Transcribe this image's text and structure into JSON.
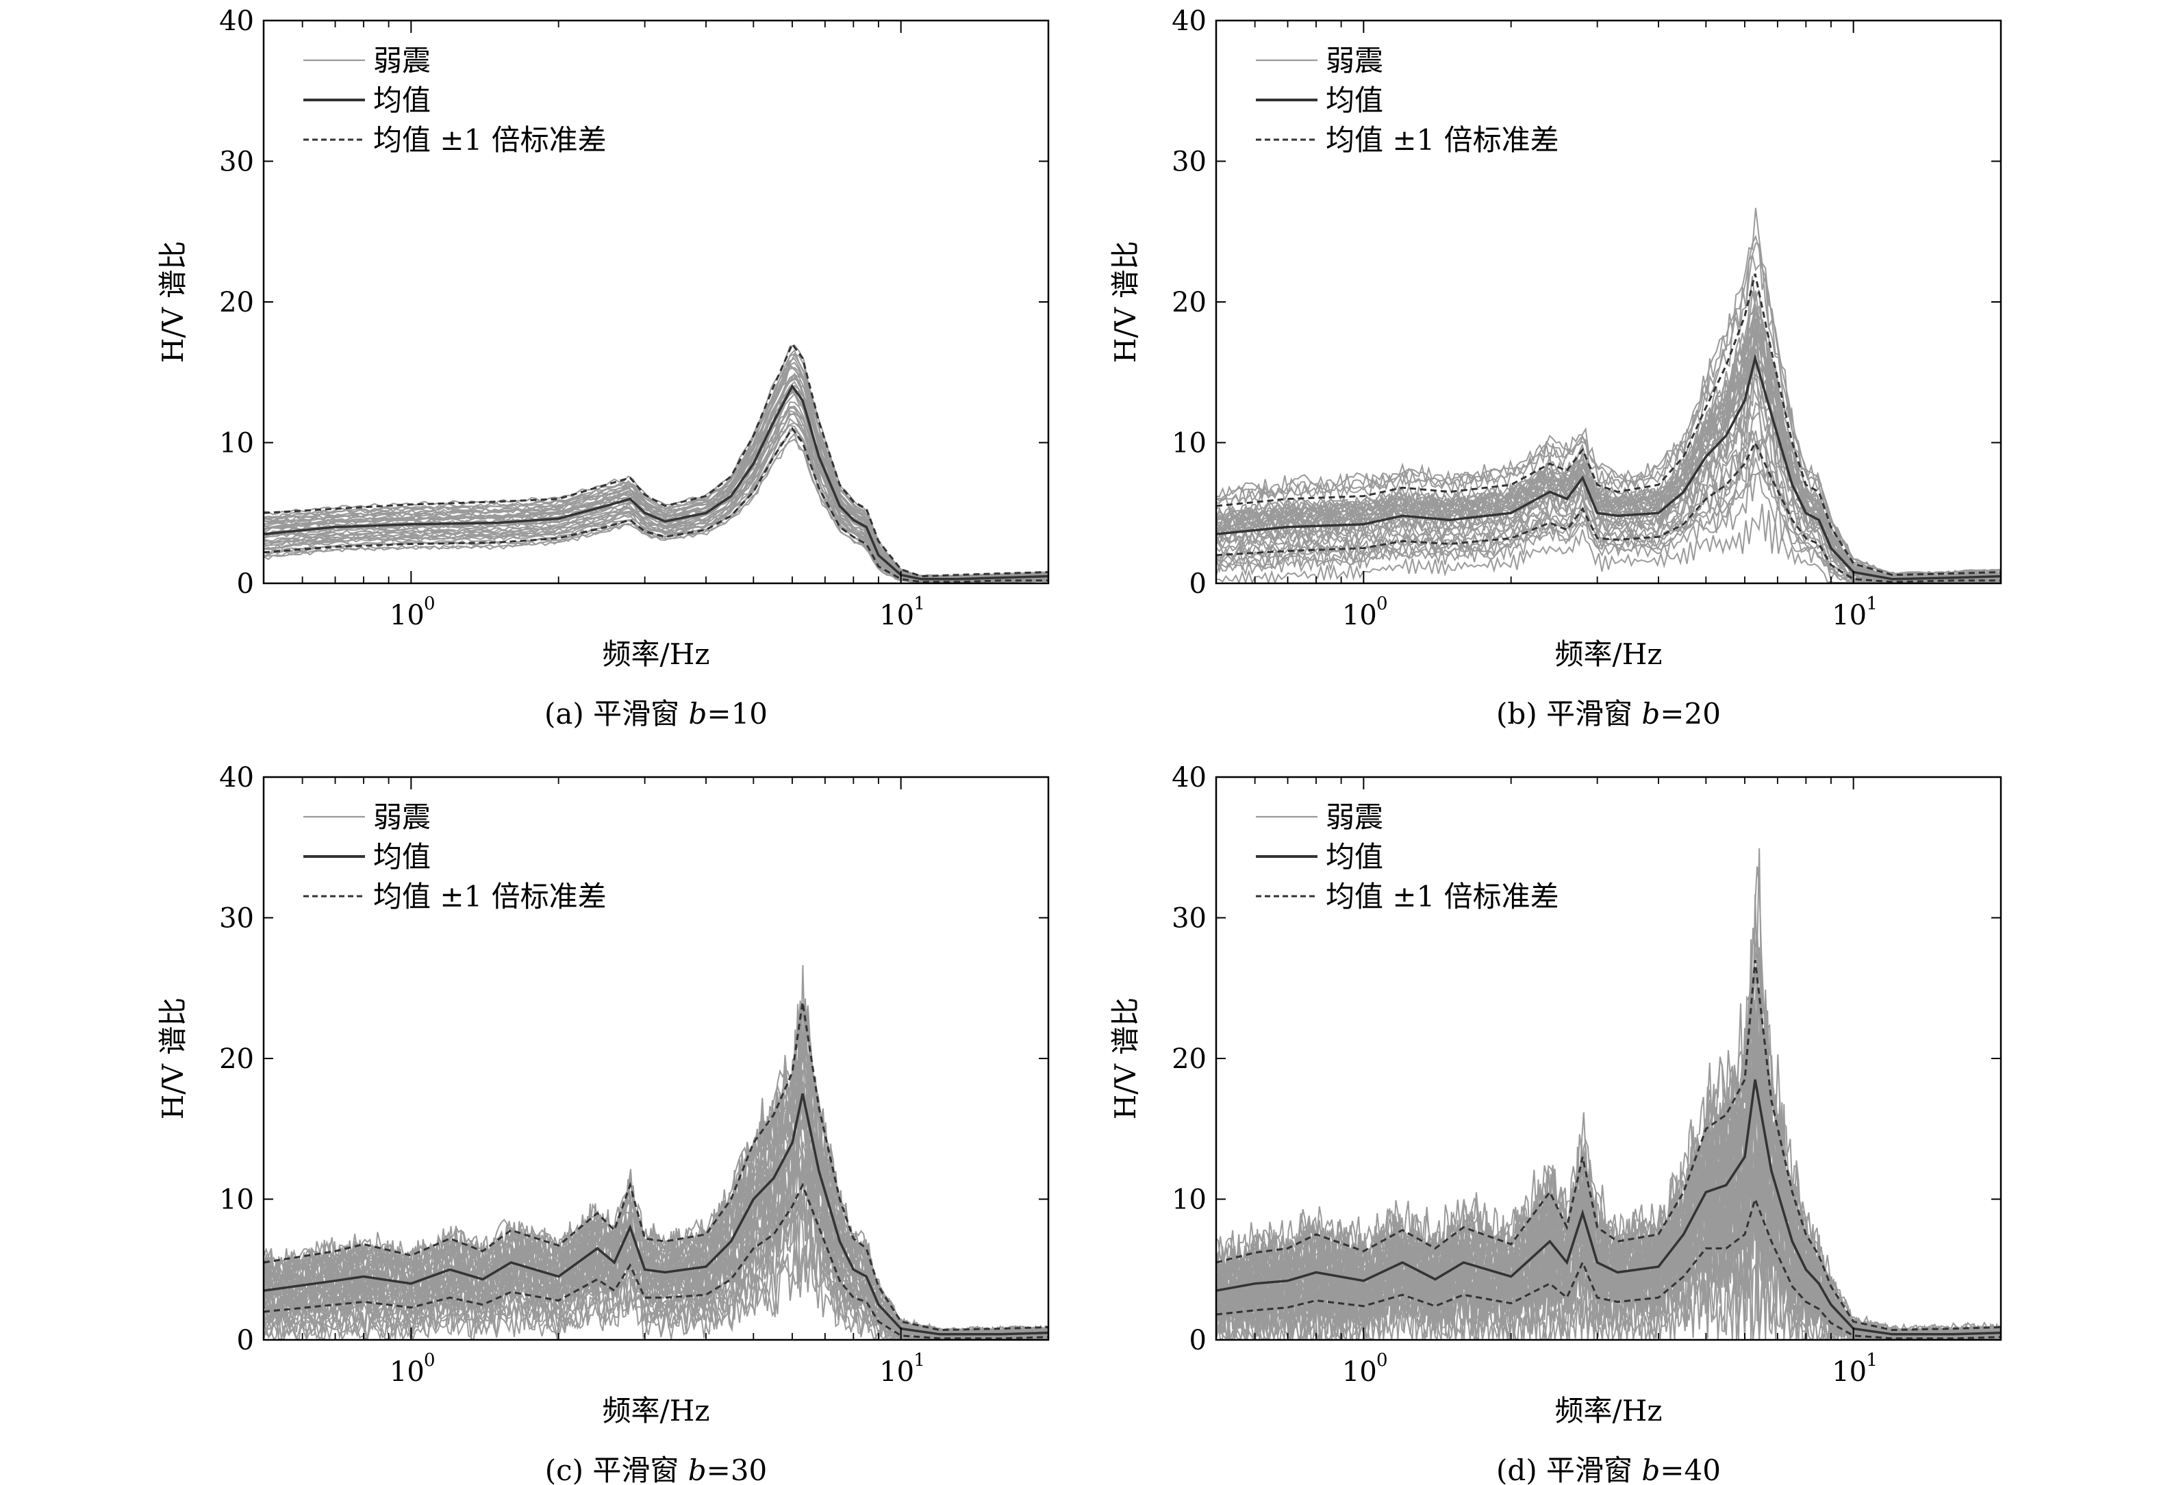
{
  "figure": {
    "panels": [
      {
        "caption_pre": "(a) 平滑窗 ",
        "caption_var": "b",
        "caption_post": "=10"
      },
      {
        "caption_pre": "(b) 平滑窗 ",
        "caption_var": "b",
        "caption_post": "=20"
      },
      {
        "caption_pre": "(c) 平滑窗 ",
        "caption_var": "b",
        "caption_post": "=30"
      },
      {
        "caption_pre": "(d) 平滑窗 ",
        "caption_var": "b",
        "caption_post": "=40"
      }
    ]
  },
  "colors": {
    "individual": "#9a9a9a",
    "mean": "#333333",
    "std": "#333333",
    "axis": "#000000"
  },
  "chart_data": [
    {
      "type": "line",
      "xlabel": "频率/Hz",
      "ylabel": "H/V 谱比",
      "xscale": "log",
      "xlim": [
        0.5,
        20
      ],
      "ylim": [
        0,
        40
      ],
      "yticks": [
        0,
        10,
        20,
        30,
        40
      ],
      "xticks": [
        {
          "value": 1,
          "base": "10",
          "exp": "0"
        },
        {
          "value": 10,
          "base": "10",
          "exp": "1"
        }
      ],
      "legend": {
        "placement": "top-left",
        "entries": [
          {
            "label": "弱震",
            "style": "individual"
          },
          {
            "label": "均值",
            "style": "mean"
          },
          {
            "label": "均值 ±1 倍标准差",
            "style": "std"
          }
        ]
      },
      "x": [
        0.5,
        0.7,
        1.0,
        1.5,
        2.0,
        2.5,
        2.8,
        3.0,
        3.3,
        4.0,
        4.5,
        5.0,
        5.5,
        6.0,
        6.3,
        6.8,
        7.5,
        8.0,
        8.5,
        9.0,
        10.0,
        11.0,
        13.0,
        16.0,
        20.0
      ],
      "series": [
        {
          "name": "均值",
          "values": [
            3.5,
            4.0,
            4.2,
            4.3,
            4.6,
            5.5,
            6.0,
            5.0,
            4.4,
            5.0,
            6.2,
            8.5,
            11.5,
            14.0,
            13.0,
            9.0,
            5.5,
            4.5,
            4.0,
            2.0,
            0.6,
            0.3,
            0.3,
            0.4,
            0.5
          ]
        },
        {
          "name": "均值+1倍标准差",
          "values": [
            5.0,
            5.3,
            5.6,
            5.8,
            6.0,
            7.0,
            7.5,
            6.3,
            5.5,
            6.2,
            7.6,
            10.5,
            14.0,
            17.0,
            16.0,
            11.5,
            7.0,
            5.8,
            5.3,
            3.0,
            1.0,
            0.5,
            0.6,
            0.7,
            0.8
          ]
        },
        {
          "name": "均值-1倍标准差",
          "values": [
            2.2,
            2.6,
            2.8,
            2.9,
            3.2,
            4.0,
            4.5,
            3.7,
            3.3,
            3.8,
            4.8,
            6.5,
            9.0,
            11.0,
            10.0,
            6.8,
            4.0,
            3.3,
            2.8,
            1.2,
            0.3,
            0.1,
            0.1,
            0.2,
            0.2
          ]
        }
      ]
    },
    {
      "type": "line",
      "xlabel": "频率/Hz",
      "ylabel": "H/V 谱比",
      "xscale": "log",
      "xlim": [
        0.5,
        20
      ],
      "ylim": [
        0,
        40
      ],
      "yticks": [
        0,
        10,
        20,
        30,
        40
      ],
      "xticks": [
        {
          "value": 1,
          "base": "10",
          "exp": "0"
        },
        {
          "value": 10,
          "base": "10",
          "exp": "1"
        }
      ],
      "legend": {
        "placement": "top-left",
        "entries": [
          {
            "label": "弱震",
            "style": "individual"
          },
          {
            "label": "均值",
            "style": "mean"
          },
          {
            "label": "均值 ±1 倍标准差",
            "style": "std"
          }
        ]
      },
      "x": [
        0.5,
        0.7,
        1.0,
        1.2,
        1.5,
        2.0,
        2.4,
        2.6,
        2.8,
        3.0,
        3.3,
        4.0,
        4.5,
        5.0,
        5.5,
        6.0,
        6.3,
        6.8,
        7.5,
        8.0,
        8.5,
        9.0,
        10.0,
        12.0,
        16.0,
        20.0
      ],
      "series": [
        {
          "name": "均值",
          "values": [
            3.5,
            4.0,
            4.2,
            4.8,
            4.5,
            5.0,
            6.5,
            6.0,
            7.5,
            5.0,
            4.8,
            5.0,
            6.5,
            9.0,
            10.5,
            13.0,
            16.0,
            12.0,
            7.0,
            5.0,
            4.5,
            2.5,
            0.8,
            0.3,
            0.4,
            0.5
          ]
        },
        {
          "name": "均值+1倍标准差",
          "values": [
            5.5,
            6.0,
            6.2,
            6.8,
            6.5,
            7.0,
            8.5,
            8.0,
            9.5,
            7.0,
            6.5,
            7.0,
            9.0,
            12.5,
            15.5,
            19.0,
            22.0,
            16.5,
            10.0,
            7.0,
            6.5,
            4.0,
            1.4,
            0.6,
            0.7,
            0.8
          ]
        },
        {
          "name": "均值-1倍标准差",
          "values": [
            2.0,
            2.3,
            2.5,
            3.0,
            2.8,
            3.2,
            4.3,
            3.8,
            5.3,
            3.2,
            3.1,
            3.3,
            4.2,
            6.0,
            7.0,
            8.5,
            10.0,
            7.5,
            4.5,
            3.2,
            2.8,
            1.3,
            0.3,
            0.1,
            0.2,
            0.2
          ]
        }
      ]
    },
    {
      "type": "line",
      "xlabel": "频率/Hz",
      "ylabel": "H/V 谱比",
      "xscale": "log",
      "xlim": [
        0.5,
        20
      ],
      "ylim": [
        0,
        40
      ],
      "yticks": [
        0,
        10,
        20,
        30,
        40
      ],
      "xticks": [
        {
          "value": 1,
          "base": "10",
          "exp": "0"
        },
        {
          "value": 10,
          "base": "10",
          "exp": "1"
        }
      ],
      "legend": {
        "placement": "top-left",
        "entries": [
          {
            "label": "弱震",
            "style": "individual"
          },
          {
            "label": "均值",
            "style": "mean"
          },
          {
            "label": "均值 ±1 倍标准差",
            "style": "std"
          }
        ]
      },
      "x": [
        0.5,
        0.7,
        0.8,
        1.0,
        1.2,
        1.4,
        1.6,
        2.0,
        2.4,
        2.6,
        2.8,
        3.0,
        3.3,
        4.0,
        4.5,
        5.0,
        5.5,
        6.0,
        6.3,
        6.8,
        7.5,
        8.0,
        8.5,
        9.0,
        10.0,
        12.0,
        16.0,
        20.0
      ],
      "series": [
        {
          "name": "均值",
          "values": [
            3.5,
            4.2,
            4.5,
            4.0,
            5.0,
            4.3,
            5.5,
            4.5,
            6.5,
            5.5,
            8.0,
            5.0,
            4.8,
            5.2,
            7.0,
            10.0,
            11.5,
            14.0,
            17.5,
            12.0,
            7.0,
            5.0,
            4.5,
            2.5,
            0.8,
            0.4,
            0.4,
            0.5
          ]
        },
        {
          "name": "均值+1倍标准差",
          "values": [
            5.5,
            6.3,
            6.8,
            6.0,
            7.2,
            6.3,
            7.8,
            6.7,
            9.0,
            7.8,
            11.0,
            7.2,
            7.0,
            7.5,
            10.0,
            14.0,
            16.0,
            19.0,
            24.0,
            16.5,
            10.0,
            7.2,
            6.5,
            3.8,
            1.3,
            0.7,
            0.8,
            0.9
          ]
        },
        {
          "name": "均值-1倍标准差",
          "values": [
            2.0,
            2.5,
            2.7,
            2.3,
            3.0,
            2.5,
            3.4,
            2.8,
            4.3,
            3.5,
            5.3,
            3.0,
            3.0,
            3.2,
            4.3,
            6.5,
            7.5,
            9.5,
            11.0,
            8.0,
            4.2,
            3.0,
            2.7,
            1.3,
            0.3,
            0.1,
            0.1,
            0.2
          ]
        }
      ]
    },
    {
      "type": "line",
      "xlabel": "频率/Hz",
      "ylabel": "H/V 谱比",
      "xscale": "log",
      "xlim": [
        0.5,
        20
      ],
      "ylim": [
        0,
        40
      ],
      "yticks": [
        0,
        10,
        20,
        30,
        40
      ],
      "xticks": [
        {
          "value": 1,
          "base": "10",
          "exp": "0"
        },
        {
          "value": 10,
          "base": "10",
          "exp": "1"
        }
      ],
      "legend": {
        "placement": "top-left",
        "entries": [
          {
            "label": "弱震",
            "style": "individual"
          },
          {
            "label": "均值",
            "style": "mean"
          },
          {
            "label": "均值 ±1 倍标准差",
            "style": "std"
          }
        ]
      },
      "x": [
        0.5,
        0.6,
        0.7,
        0.8,
        1.0,
        1.2,
        1.4,
        1.6,
        2.0,
        2.4,
        2.6,
        2.8,
        3.0,
        3.3,
        4.0,
        4.5,
        5.0,
        5.5,
        6.0,
        6.3,
        6.8,
        7.5,
        8.0,
        8.5,
        9.0,
        10.0,
        12.0,
        16.0,
        20.0
      ],
      "series": [
        {
          "name": "均值",
          "values": [
            3.5,
            4.0,
            4.2,
            4.8,
            4.2,
            5.5,
            4.3,
            5.5,
            4.5,
            7.0,
            5.5,
            9.0,
            5.5,
            4.8,
            5.2,
            7.5,
            10.5,
            11.0,
            13.0,
            18.5,
            12.0,
            7.0,
            5.0,
            4.0,
            2.5,
            0.8,
            0.4,
            0.4,
            0.5
          ]
        },
        {
          "name": "均值+1倍标准差",
          "values": [
            5.5,
            6.2,
            6.5,
            7.5,
            6.3,
            7.8,
            6.5,
            8.0,
            6.8,
            10.5,
            8.0,
            13.0,
            8.0,
            7.0,
            7.5,
            10.5,
            15.0,
            16.0,
            18.5,
            27.0,
            17.0,
            10.5,
            7.5,
            6.0,
            3.8,
            1.3,
            0.7,
            0.8,
            0.9
          ]
        },
        {
          "name": "均值-1倍标准差",
          "values": [
            1.8,
            2.1,
            2.3,
            2.8,
            2.4,
            3.2,
            2.4,
            3.2,
            2.6,
            4.0,
            3.0,
            5.5,
            3.0,
            2.7,
            3.0,
            4.5,
            6.5,
            6.5,
            7.5,
            10.0,
            7.0,
            3.8,
            2.7,
            2.2,
            1.2,
            0.3,
            0.1,
            0.1,
            0.2
          ]
        }
      ]
    }
  ]
}
